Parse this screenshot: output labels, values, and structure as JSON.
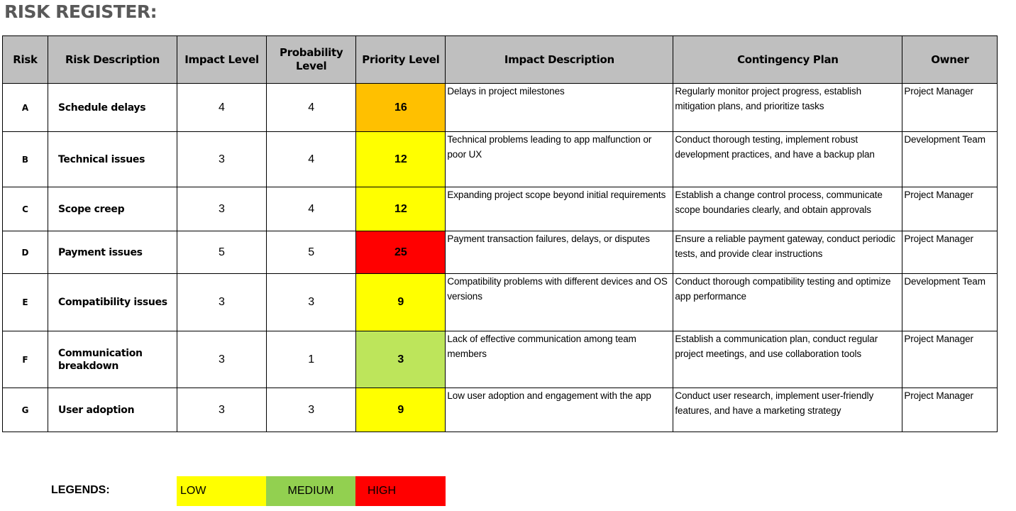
{
  "title": "RISK REGISTER:",
  "table": {
    "headers": [
      "Risk",
      "Risk Description",
      "Impact Level",
      "Probability Level",
      "Priority Level",
      "Impact Description",
      "Contingency Plan",
      "Owner"
    ],
    "rows": [
      {
        "risk": "A",
        "description": "Schedule delays",
        "impact": "4",
        "probability": "4",
        "priority": "16",
        "priority_color": "#ffc000",
        "impact_description": "Delays in project milestones",
        "contingency": "Regularly monitor project progress, establish mitigation plans, and prioritize tasks",
        "owner": "Project Manager"
      },
      {
        "risk": "B",
        "description": "Technical issues",
        "impact": "3",
        "probability": "4",
        "priority": "12",
        "priority_color": "#ffff00",
        "impact_description": "Technical problems leading to app malfunction or poor UX",
        "contingency": "Conduct thorough testing, implement robust development practices, and have a backup plan",
        "owner": "Development Team"
      },
      {
        "risk": "C",
        "description": "Scope creep",
        "impact": "3",
        "probability": "4",
        "priority": "12",
        "priority_color": "#ffff00",
        "impact_description": "Expanding project scope beyond initial requirements",
        "contingency": "Establish a change control process, communicate scope boundaries clearly, and obtain approvals",
        "owner": "Project Manager"
      },
      {
        "risk": "D",
        "description": "Payment issues",
        "impact": "5",
        "probability": "5",
        "priority": "25",
        "priority_color": "#ff0000",
        "impact_description": "Payment transaction failures, delays, or disputes",
        "contingency": "Ensure a reliable payment gateway, conduct periodic tests, and provide clear instructions",
        "owner": "Project Manager"
      },
      {
        "risk": "E",
        "description": "Compatibility issues",
        "impact": "3",
        "probability": "3",
        "priority": "9",
        "priority_color": "#ffff00",
        "impact_description": "Compatibility problems with different devices and OS versions",
        "contingency": "Conduct thorough compatibility testing and optimize app performance",
        "owner": "Development Team"
      },
      {
        "risk": "F",
        "description": "Communication breakdown",
        "impact": "3",
        "probability": "1",
        "priority": "3",
        "priority_color": "#bde55b",
        "impact_description": "Lack of effective communication among team members",
        "contingency": "Establish a communication plan, conduct regular project meetings, and use collaboration tools",
        "owner": "Project Manager"
      },
      {
        "risk": "G",
        "description": "User adoption",
        "impact": "3",
        "probability": "3",
        "priority": "9",
        "priority_color": "#ffff00",
        "impact_description": "Low user adoption and engagement with the app",
        "contingency": "Conduct user research, implement user-friendly features, and have a marketing strategy",
        "owner": "Project Manager"
      }
    ]
  },
  "legend": {
    "label": "LEGENDS:",
    "items": [
      {
        "label": "LOW",
        "color": "#ffff00"
      },
      {
        "label": "MEDIUM",
        "color": "#92d050"
      },
      {
        "label": "HIGH",
        "color": "#ff0000"
      }
    ]
  },
  "colors": {
    "header_bg": "#bfbfbf",
    "title": "#595959"
  }
}
